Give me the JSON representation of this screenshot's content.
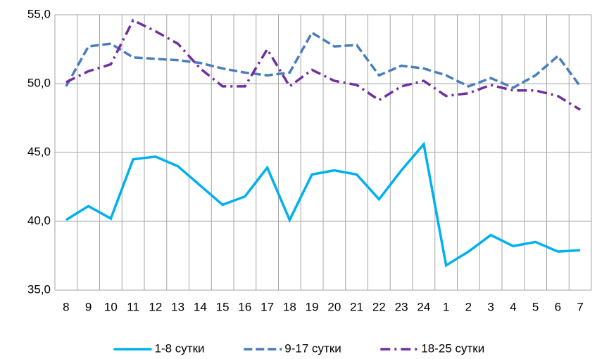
{
  "chart_data": {
    "type": "line",
    "categories": [
      "8",
      "9",
      "10",
      "11",
      "12",
      "13",
      "14",
      "15",
      "16",
      "17",
      "18",
      "19",
      "20",
      "21",
      "22",
      "23",
      "24",
      "1",
      "2",
      "3",
      "4",
      "5",
      "6",
      "7"
    ],
    "series": [
      {
        "name": "1-8 сутки",
        "color": "#00b0f0",
        "dash": "solid",
        "values": [
          40.1,
          41.1,
          40.2,
          44.5,
          44.7,
          44.0,
          42.6,
          41.2,
          41.8,
          43.9,
          40.1,
          43.4,
          43.7,
          43.4,
          41.6,
          43.7,
          45.6,
          36.8,
          37.8,
          39.0,
          38.2,
          38.5,
          37.8,
          37.9
        ]
      },
      {
        "name": "9-17 сутки",
        "color": "#4a7ebb",
        "dash": "dash",
        "values": [
          49.8,
          52.7,
          52.9,
          51.9,
          51.8,
          51.7,
          51.5,
          51.1,
          50.8,
          50.6,
          50.8,
          53.7,
          52.7,
          52.8,
          50.6,
          51.3,
          51.1,
          50.6,
          49.8,
          50.4,
          49.7,
          50.6,
          52.0,
          49.8
        ]
      },
      {
        "name": "18-25 сутки",
        "color": "#7030a0",
        "dash": "dashdot",
        "values": [
          50.1,
          50.9,
          51.4,
          54.6,
          53.8,
          52.9,
          51.1,
          49.8,
          49.8,
          52.5,
          49.8,
          51.0,
          50.2,
          49.9,
          48.8,
          49.8,
          50.2,
          49.1,
          49.3,
          49.9,
          49.5,
          49.5,
          49.1,
          48.1
        ]
      }
    ],
    "ylim": [
      35,
      55
    ],
    "yticks": [
      {
        "value": 35,
        "label": "35,0"
      },
      {
        "value": 40,
        "label": "40,0"
      },
      {
        "value": 45,
        "label": "45,0"
      },
      {
        "value": 50,
        "label": "50,0"
      },
      {
        "value": 55,
        "label": "55,0"
      }
    ],
    "grid": true,
    "legend": "bottom"
  }
}
